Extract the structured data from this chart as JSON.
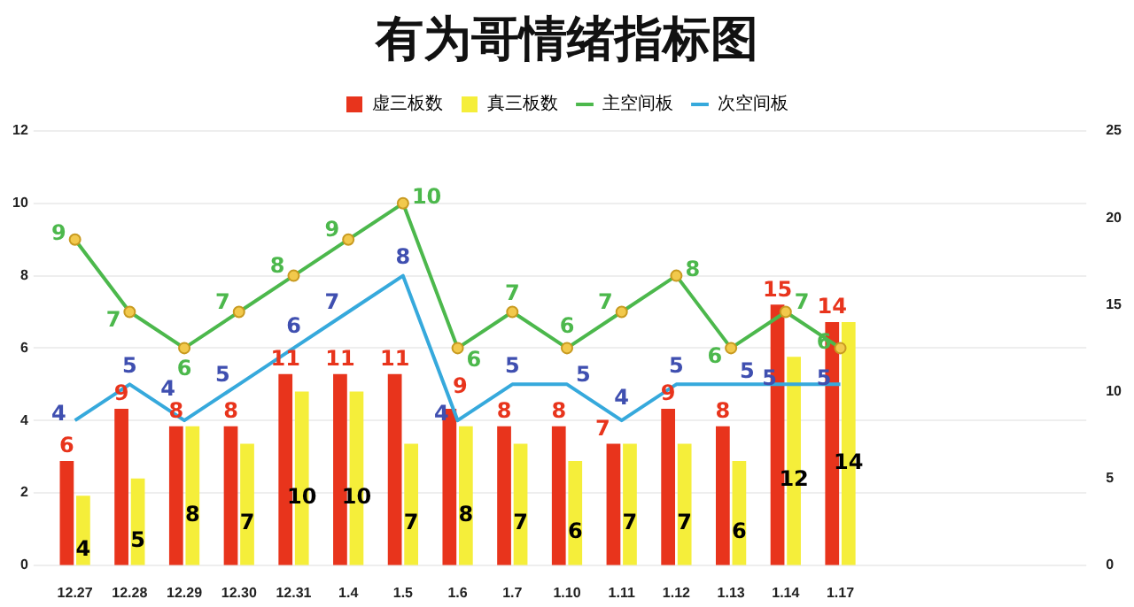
{
  "chart_data": {
    "type": "bar",
    "title": "有为哥情绪指标图",
    "categories": [
      "12.27",
      "12.28",
      "12.29",
      "12.30",
      "12.31",
      "1.4",
      "1.5",
      "1.6",
      "1.7",
      "1.10",
      "1.11",
      "1.12",
      "1.13",
      "1.14",
      "1.17",
      null,
      null,
      null,
      null
    ],
    "series": [
      {
        "name": "虚三板数",
        "axis": "y2",
        "color": "#e8341c",
        "values": [
          6,
          9,
          8,
          8,
          11,
          11,
          11,
          9,
          8,
          8,
          7,
          9,
          8,
          15,
          14,
          null,
          null,
          null,
          null
        ]
      },
      {
        "name": "真三板数",
        "axis": "y2",
        "color": "#f5ee3a",
        "values": [
          4,
          5,
          8,
          7,
          10,
          10,
          7,
          8,
          7,
          6,
          7,
          7,
          6,
          12,
          14,
          null,
          null,
          null,
          null
        ]
      },
      {
        "name": "主空间板",
        "type": "line",
        "axis": "y",
        "color": "#4cb84c",
        "marker": "circle",
        "values": [
          9,
          7,
          6,
          7,
          8,
          9,
          10,
          6,
          7,
          6,
          7,
          8,
          6,
          7,
          6,
          null,
          null,
          null,
          null
        ]
      },
      {
        "name": "次空间板",
        "type": "line",
        "axis": "y",
        "color": "#36a9dc",
        "marker": "none",
        "values": [
          4,
          5,
          4,
          5,
          6,
          7,
          8,
          4,
          5,
          5,
          4,
          5,
          5,
          5,
          5,
          null,
          null,
          null,
          null
        ]
      }
    ],
    "ylim": [
      0,
      12
    ],
    "yticks": [
      0,
      2,
      4,
      6,
      8,
      10,
      12
    ],
    "y2lim": [
      0,
      25
    ],
    "y2ticks": [
      0,
      5,
      10,
      15,
      20,
      25
    ],
    "grid": "y",
    "legend": "top",
    "data_labels": true
  }
}
